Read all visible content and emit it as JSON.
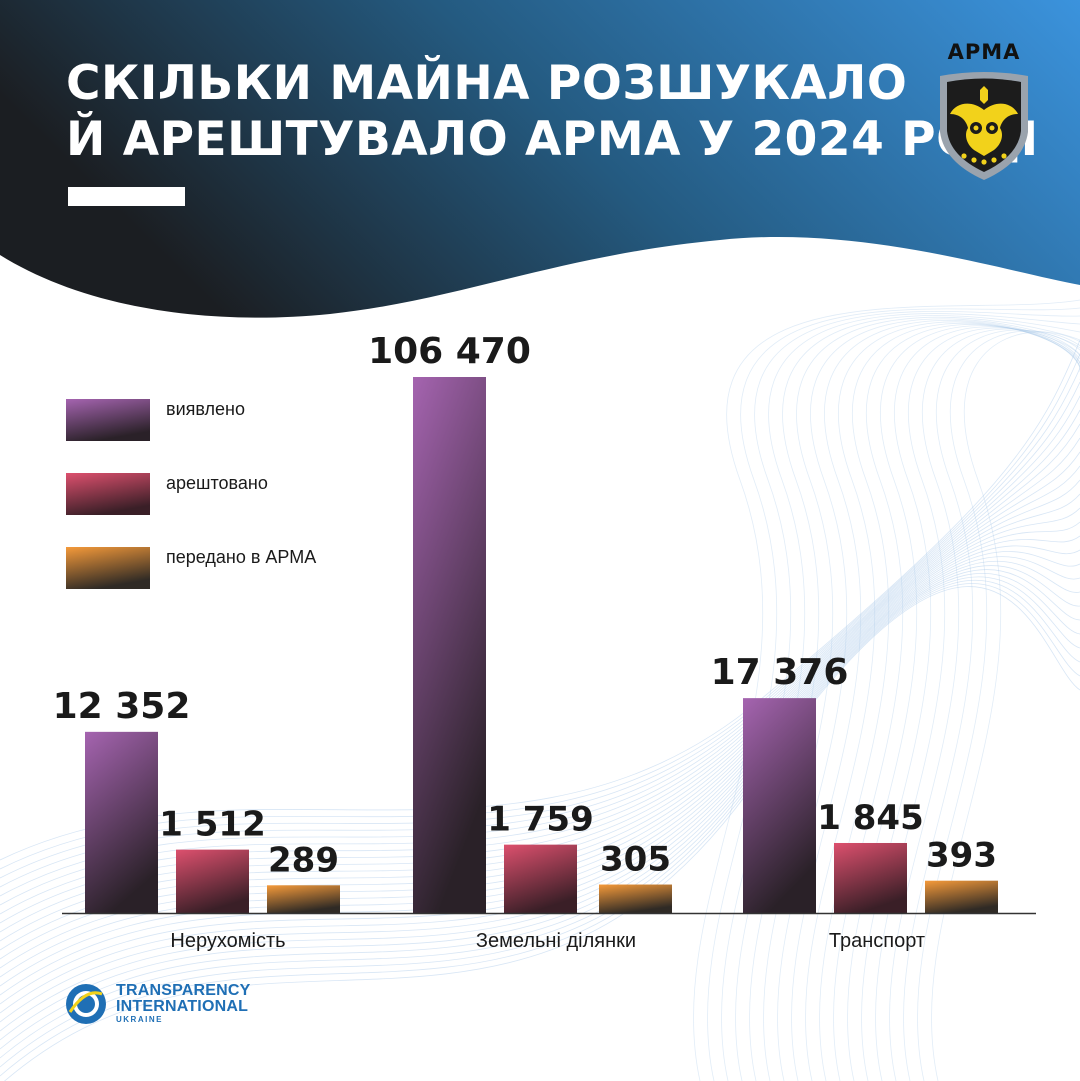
{
  "header": {
    "title_line_1": "СКІЛЬКИ МАЙНА РОЗШУКАЛО",
    "title_line_2": "Й АРЕШТУВАЛО АРМА У 2024 РОЦІ",
    "gradient_colors": [
      "#1b1e22",
      "#3b93dd"
    ]
  },
  "logo": {
    "text": "АРМА",
    "icon": "owl-shield-icon",
    "accent_color": "#f2d21b"
  },
  "chart_data": {
    "type": "bar",
    "categories": [
      "Нерухомість",
      "Земельні ділянки",
      "Транспорт"
    ],
    "series": [
      {
        "name": "виявлено",
        "values": [
          12352,
          106470,
          17376
        ],
        "labels": [
          "12 352",
          "106 470",
          "17 376"
        ],
        "color": "#9a5ea8"
      },
      {
        "name": "арештовано",
        "values": [
          1512,
          1759,
          1845
        ],
        "labels": [
          "1 512",
          "1 759",
          "1 845"
        ],
        "color": "#d84e6b"
      },
      {
        "name": "передано в АРМА",
        "values": [
          289,
          305,
          393
        ],
        "labels": [
          "289",
          "305",
          "393"
        ],
        "color": "#f0953a"
      }
    ],
    "scale": "non-linear",
    "legend_position": "top-left",
    "grid": false
  },
  "footer": {
    "logo_icon": "transparency-international-icon",
    "line_1": "TRANSPARENCY",
    "line_2": "INTERNATIONAL",
    "line_3": "UKRAINE",
    "color": "#1f6fb5"
  }
}
